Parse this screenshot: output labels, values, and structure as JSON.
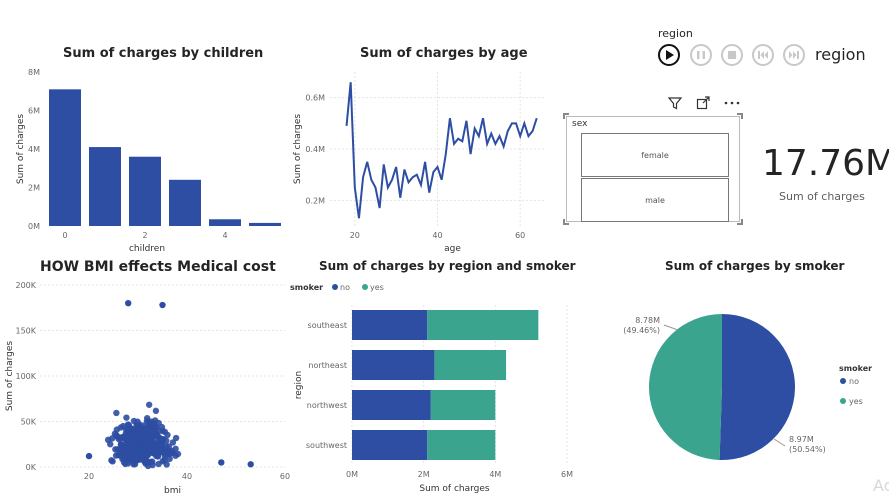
{
  "titles": {
    "children": "Sum of charges by children",
    "age": "Sum of charges by age",
    "bmi": "HOW BMI effects Medical cost",
    "region_smoker": "Sum of charges by region and smoker",
    "smoker": "Sum of charges by smoker"
  },
  "play_axis": {
    "field": "region",
    "label": "region"
  },
  "slicer": {
    "header": "sex",
    "options": [
      "female",
      "male"
    ]
  },
  "card": {
    "value": "17.76M",
    "label": "Sum of charges"
  },
  "watermark": "Ac",
  "colors": {
    "no": "#2e4ea3",
    "yes": "#3aa48e",
    "bar": "#2e4ea3"
  },
  "icons": [
    "filter-icon",
    "focus-mode-icon",
    "more-options-icon",
    "play-icon",
    "pause-icon",
    "stop-icon",
    "previous-icon",
    "next-icon"
  ],
  "chart_data": [
    {
      "id": "children",
      "type": "bar",
      "title": "Sum of charges by children",
      "xlabel": "children",
      "ylabel": "Sum of charges",
      "categories": [
        0,
        1,
        2,
        3,
        4,
        5
      ],
      "values": [
        7.1,
        4.1,
        3.6,
        2.4,
        0.35,
        0.16
      ],
      "ylim": [
        0,
        8
      ],
      "yticks": [
        "0M",
        "2M",
        "4M",
        "6M",
        "8M"
      ],
      "xticks": [
        "0",
        "2",
        "4"
      ]
    },
    {
      "id": "age",
      "type": "line",
      "title": "Sum of charges by age",
      "xlabel": "age",
      "ylabel": "Sum of charges",
      "x": [
        18,
        19,
        20,
        21,
        22,
        23,
        24,
        25,
        26,
        27,
        28,
        29,
        30,
        31,
        32,
        33,
        34,
        35,
        36,
        37,
        38,
        39,
        40,
        41,
        42,
        43,
        44,
        45,
        46,
        47,
        48,
        49,
        50,
        51,
        52,
        53,
        54,
        55,
        56,
        57,
        58,
        59,
        60,
        61,
        62,
        63,
        64
      ],
      "y": [
        0.49,
        0.66,
        0.25,
        0.13,
        0.29,
        0.35,
        0.28,
        0.25,
        0.17,
        0.34,
        0.25,
        0.28,
        0.33,
        0.21,
        0.32,
        0.27,
        0.29,
        0.3,
        0.26,
        0.35,
        0.23,
        0.31,
        0.33,
        0.28,
        0.38,
        0.52,
        0.42,
        0.44,
        0.43,
        0.51,
        0.38,
        0.48,
        0.45,
        0.52,
        0.42,
        0.46,
        0.42,
        0.45,
        0.41,
        0.47,
        0.5,
        0.5,
        0.45,
        0.5,
        0.45,
        0.47,
        0.52
      ],
      "ylim": [
        0.1,
        0.7
      ],
      "yticks": [
        "0.2M",
        "0.4M",
        "0.6M"
      ],
      "xticks": [
        "20",
        "40",
        "60"
      ]
    },
    {
      "id": "bmi",
      "type": "scatter",
      "title": "HOW BMI effects Medical cost",
      "xlabel": "bmi",
      "ylabel": "Sum of charges",
      "xlim": [
        10,
        60
      ],
      "ylim": [
        0,
        200
      ],
      "yticks": [
        "0K",
        "50K",
        "100K",
        "150K",
        "200K"
      ],
      "xticks": [
        "20",
        "40",
        "60"
      ]
    },
    {
      "id": "region_smoker",
      "type": "bar",
      "title": "Sum of charges by region and smoker",
      "xlabel": "Sum of charges",
      "ylabel": "region",
      "categories": [
        "southeast",
        "northeast",
        "northwest",
        "southwest"
      ],
      "series": [
        {
          "name": "no",
          "values": [
            2.1,
            2.3,
            2.2,
            2.1
          ]
        },
        {
          "name": "yes",
          "values": [
            3.1,
            2.0,
            1.8,
            1.9
          ]
        }
      ],
      "legend_title": "smoker",
      "xlim": [
        0,
        6
      ],
      "xticks": [
        "0M",
        "2M",
        "4M",
        "6M"
      ]
    },
    {
      "id": "smoker",
      "type": "pie",
      "title": "Sum of charges by smoker",
      "legend_title": "smoker",
      "slices": [
        {
          "name": "no",
          "value": 8.97,
          "label": "8.97M",
          "pct": "(50.54%)"
        },
        {
          "name": "yes",
          "value": 8.78,
          "label": "8.78M",
          "pct": "(49.46%)"
        }
      ]
    }
  ]
}
